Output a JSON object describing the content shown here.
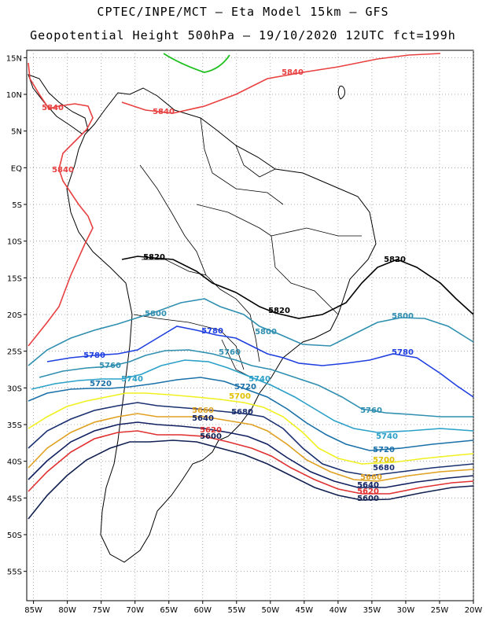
{
  "header": {
    "title": "CPTEC/INPE/MCT –  Eta Model 15km – GFS",
    "subtitle": "Geopotential Height 500hPa – 19/10/2020 12UTC fct=199h"
  },
  "map": {
    "lon_range": [
      -86,
      -20
    ],
    "lat_range": [
      -59,
      16
    ],
    "lat_ticks": [
      "15N",
      "10N",
      "5N",
      "EQ",
      "5S",
      "10S",
      "15S",
      "20S",
      "25S",
      "30S",
      "35S",
      "40S",
      "45S",
      "50S",
      "55S"
    ],
    "lon_ticks": [
      "85W",
      "80W",
      "75W",
      "70W",
      "65W",
      "60W",
      "55W",
      "50W",
      "45W",
      "40W",
      "35W",
      "30W",
      "25W",
      "20W"
    ],
    "grid": true
  },
  "contours": [
    {
      "value": "5840",
      "color": "#e84040"
    },
    {
      "value": "5820",
      "color": "#000000"
    },
    {
      "value": "5800",
      "color": "#2f8fb0"
    },
    {
      "value": "5780",
      "color": "#1f3fe0"
    },
    {
      "value": "5760",
      "color": "#2f8fb0"
    },
    {
      "value": "5740",
      "color": "#2aa0c8"
    },
    {
      "value": "5720",
      "color": "#1a70a8"
    },
    {
      "value": "5700",
      "color": "#f0f020"
    },
    {
      "value": "5680",
      "color": "#1a3070"
    },
    {
      "value": "5660",
      "color": "#e0a020"
    },
    {
      "value": "5640",
      "color": "#102060"
    },
    {
      "value": "5620",
      "color": "#e03030"
    },
    {
      "value": "5600",
      "color": "#102050"
    }
  ],
  "legend_extra": {
    "green_line_color": "#20c020"
  }
}
